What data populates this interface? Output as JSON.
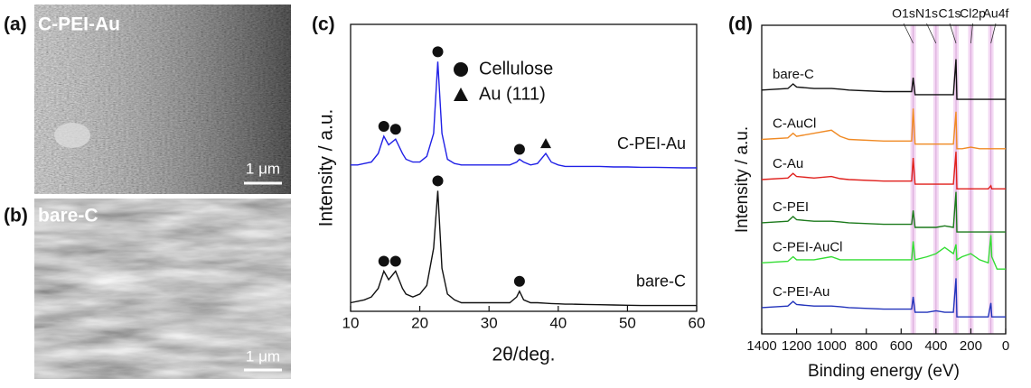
{
  "panels": [
    {
      "label": "(a)",
      "title": "C-PEI-Au",
      "scale_bar": "1 μm"
    },
    {
      "label": "(b)",
      "title": "bare-C",
      "scale_bar": "1 μm"
    }
  ],
  "chart_data": [
    {
      "type": "line",
      "panel_label": "(c)",
      "xlabel": "2θ/deg.",
      "ylabel": "Intensity / a.u.",
      "x": [
        10,
        11,
        12,
        13,
        14,
        14.8,
        15.5,
        16.5,
        17.5,
        18,
        19,
        20,
        21,
        22,
        22.6,
        23.2,
        24,
        25,
        26,
        27,
        28,
        29,
        30,
        31,
        32,
        33,
        34,
        34.4,
        35,
        36,
        37,
        38.2,
        39,
        40,
        41,
        42,
        44,
        46,
        48,
        50,
        52,
        54,
        56,
        58,
        60
      ],
      "xlim": [
        10,
        60
      ],
      "xticks": [
        10,
        20,
        30,
        40,
        50,
        60
      ],
      "ylim": [
        0,
        100
      ],
      "legend": [
        {
          "name": "Cellulose",
          "marker": "circle"
        },
        {
          "name": "Au (111)",
          "marker": "triangle"
        }
      ],
      "series": [
        {
          "name": "C-PEI-Au",
          "color": "#2020e6",
          "values": [
            51,
            51,
            51.5,
            52,
            55,
            61,
            58,
            60,
            55,
            53,
            52,
            52,
            54,
            62,
            87,
            62,
            53,
            51.5,
            51,
            51,
            51,
            51,
            51,
            51,
            51,
            51,
            52,
            53,
            52,
            51,
            51.5,
            55,
            52,
            51,
            50.5,
            50.5,
            50.5,
            50.5,
            50.3,
            50.3,
            50.2,
            50.2,
            50.1,
            50,
            50
          ],
          "peaks": {
            "circle": [
              14.8,
              16.5,
              22.6,
              34.4
            ],
            "triangle": [
              38.2
            ]
          }
        },
        {
          "name": "bare-C",
          "color": "#111111",
          "values": [
            3,
            3.5,
            4,
            5,
            8,
            14,
            11,
            14,
            8,
            6,
            5,
            6,
            9,
            22,
            42,
            15,
            6,
            4,
            3,
            3,
            3,
            3,
            3,
            3,
            3,
            3,
            5,
            7,
            4,
            3,
            3,
            2.8,
            2.7,
            2.6,
            2.5,
            2.5,
            2.4,
            2.3,
            2.2,
            2.1,
            2,
            2,
            2,
            2,
            2
          ],
          "peaks": {
            "circle": [
              14.8,
              16.5,
              22.6,
              34.4
            ]
          }
        }
      ]
    },
    {
      "type": "line",
      "panel_label": "(d)",
      "xlabel": "Binding energy (eV)",
      "ylabel": "Intensity / a.u.",
      "x": [
        1400,
        1250,
        1220,
        1200,
        1100,
        1000,
        950,
        900,
        700,
        600,
        540,
        531,
        520,
        450,
        400,
        350,
        300,
        285,
        280,
        250,
        200,
        150,
        100,
        85,
        80,
        50,
        0
      ],
      "xlim": [
        1400,
        0
      ],
      "xticks": [
        1400,
        1200,
        1000,
        800,
        600,
        400,
        200,
        0
      ],
      "ylim": [
        0,
        100
      ],
      "reference_lines": [
        {
          "label": "O1s",
          "x": 531
        },
        {
          "label": "N1s",
          "x": 400
        },
        {
          "label": "C1s",
          "x": 285
        },
        {
          "label": "Cl2p",
          "x": 200
        },
        {
          "label": "Au4f",
          "x": 85
        }
      ],
      "series": [
        {
          "name": "bare-C",
          "color": "#111111",
          "values": [
            79,
            79.5,
            81,
            80,
            79.5,
            79.5,
            79.3,
            79,
            78.5,
            78.5,
            78.5,
            83,
            77.5,
            77.5,
            77.5,
            77.5,
            77.5,
            89,
            76,
            76,
            76,
            76,
            76,
            76,
            76,
            76,
            76
          ]
        },
        {
          "name": "C-AuCl",
          "color": "#f08a24",
          "values": [
            63,
            63.5,
            65,
            64,
            65,
            66,
            64,
            63,
            62.5,
            62.5,
            62.5,
            73,
            61.5,
            61.5,
            61.5,
            61.5,
            61.5,
            72,
            60,
            60,
            60.5,
            60,
            60,
            60,
            60,
            60,
            60
          ]
        },
        {
          "name": "C-Au",
          "color": "#e0201c",
          "values": [
            50,
            50.5,
            52,
            51,
            50.5,
            51,
            50.3,
            50,
            49.5,
            49.5,
            49.5,
            57,
            48.5,
            48.5,
            48.5,
            48.5,
            48.5,
            59,
            47,
            47,
            47,
            47,
            47,
            48,
            47,
            47,
            47
          ]
        },
        {
          "name": "C-PEI",
          "color": "#1c7a1c",
          "values": [
            36,
            36.5,
            38,
            37,
            36.5,
            36.5,
            36.3,
            36,
            35.5,
            35.5,
            35.5,
            40,
            34.5,
            34.5,
            34.5,
            35,
            34.5,
            46,
            33,
            33,
            33,
            33,
            33,
            33,
            33,
            33,
            33
          ]
        },
        {
          "name": "C-PEI-AuCl",
          "color": "#33dd33",
          "values": [
            23,
            23.5,
            25,
            24,
            24,
            25,
            24,
            24,
            24,
            24,
            24,
            30,
            24,
            25,
            26,
            28,
            26,
            29,
            24,
            25,
            26,
            24,
            23,
            32,
            25,
            21,
            21
          ]
        },
        {
          "name": "C-PEI-Au",
          "color": "#2233bb",
          "values": [
            8.5,
            9,
            10.5,
            9.5,
            9,
            9,
            8.8,
            8.5,
            8,
            8,
            8,
            12,
            7,
            7,
            7.5,
            7,
            7,
            18,
            5.5,
            5.5,
            5.5,
            5.5,
            5.5,
            10,
            5.5,
            5.5,
            5.5
          ]
        }
      ]
    }
  ]
}
